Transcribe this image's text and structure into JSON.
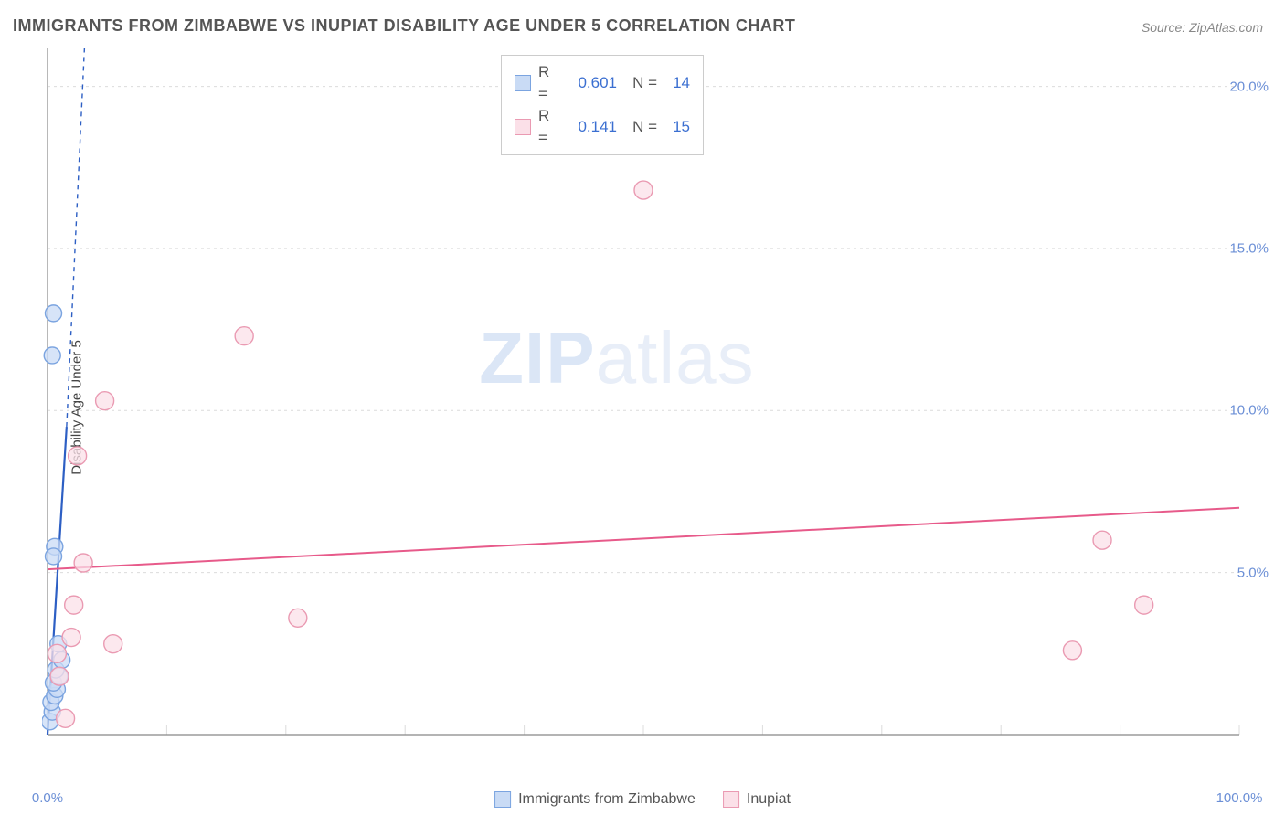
{
  "title": "IMMIGRANTS FROM ZIMBABWE VS INUPIAT DISABILITY AGE UNDER 5 CORRELATION CHART",
  "source_label": "Source:",
  "source_name": "ZipAtlas.com",
  "ylabel": "Disability Age Under 5",
  "watermark_bold": "ZIP",
  "watermark_rest": "atlas",
  "chart": {
    "type": "scatter",
    "xlim": [
      0,
      100
    ],
    "ylim": [
      0,
      21.2
    ],
    "x_ticks": [
      0,
      10,
      20,
      30,
      40,
      50,
      60,
      70,
      80,
      90,
      100
    ],
    "x_tick_labels": {
      "0": "0.0%",
      "100": "100.0%"
    },
    "y_grid": [
      5,
      10,
      15,
      20
    ],
    "y_tick_labels": {
      "5": "5.0%",
      "10": "10.0%",
      "15": "15.0%",
      "20": "20.0%"
    },
    "grid_color": "#dcdcdc",
    "axis_color": "#888888",
    "background": "#ffffff",
    "series": [
      {
        "id": "zimbabwe",
        "label": "Immigrants from Zimbabwe",
        "color_fill": "#c9dbf5",
        "color_stroke": "#7ba4e0",
        "marker_r": 9,
        "points": [
          [
            0.2,
            0.4
          ],
          [
            0.4,
            0.7
          ],
          [
            0.3,
            1.0
          ],
          [
            0.6,
            1.2
          ],
          [
            0.8,
            1.4
          ],
          [
            0.5,
            1.6
          ],
          [
            1.0,
            1.8
          ],
          [
            0.7,
            2.0
          ],
          [
            1.2,
            2.3
          ],
          [
            0.9,
            2.8
          ],
          [
            0.6,
            5.8
          ],
          [
            0.5,
            5.5
          ],
          [
            0.4,
            11.7
          ],
          [
            0.5,
            13.0
          ]
        ],
        "trend": {
          "x1": 0,
          "y1": 0,
          "x2": 1.6,
          "y2": 9.5,
          "dash_from_x": 1.6,
          "dash_to_y": 21.2,
          "dash_to_x": 3.1,
          "color": "#2d5fc4",
          "width": 2.2
        }
      },
      {
        "id": "inupiat",
        "label": "Inupiat",
        "color_fill": "#fbe0e8",
        "color_stroke": "#ea9ab2",
        "marker_r": 10,
        "points": [
          [
            1.5,
            0.5
          ],
          [
            0.8,
            2.5
          ],
          [
            2.0,
            3.0
          ],
          [
            5.5,
            2.8
          ],
          [
            2.2,
            4.0
          ],
          [
            3.0,
            5.3
          ],
          [
            2.5,
            8.6
          ],
          [
            4.8,
            10.3
          ],
          [
            16.5,
            12.3
          ],
          [
            21.0,
            3.6
          ],
          [
            50.0,
            16.8
          ],
          [
            86.0,
            2.6
          ],
          [
            88.5,
            6.0
          ],
          [
            92.0,
            4.0
          ],
          [
            1.0,
            1.8
          ]
        ],
        "trend": {
          "x1": 0,
          "y1": 5.1,
          "x2": 100,
          "y2": 7.0,
          "color": "#e75a8a",
          "width": 2
        }
      }
    ]
  },
  "legend_top": [
    {
      "swatch_fill": "#c9dbf5",
      "swatch_stroke": "#7ba4e0",
      "r_label": "R =",
      "r_value": "0.601",
      "n_label": "N =",
      "n_value": "14"
    },
    {
      "swatch_fill": "#fbe0e8",
      "swatch_stroke": "#ea9ab2",
      "r_label": "R =",
      "r_value": "0.141",
      "n_label": "N =",
      "n_value": "15"
    }
  ],
  "legend_bottom": [
    {
      "swatch_fill": "#c9dbf5",
      "swatch_stroke": "#7ba4e0",
      "label": "Immigrants from Zimbabwe"
    },
    {
      "swatch_fill": "#fbe0e8",
      "swatch_stroke": "#ea9ab2",
      "label": "Inupiat"
    }
  ]
}
